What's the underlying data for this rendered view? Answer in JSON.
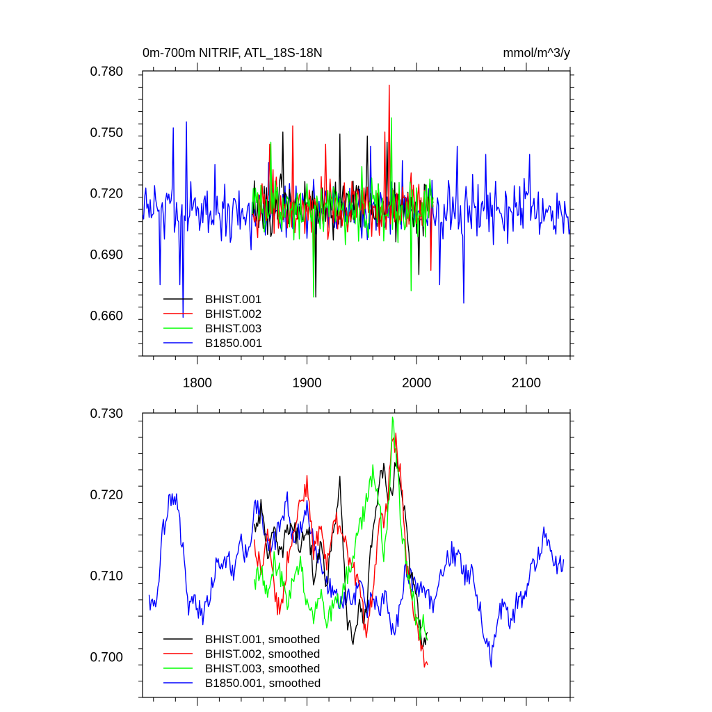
{
  "chart_data": [
    {
      "type": "line",
      "title_left": "0m-700m NITRIF, ATL_18S-18N",
      "title_right": "mmol/m^3/y",
      "xlabel": "",
      "ylabel": "",
      "xlim": [
        1750,
        2140
      ],
      "ylim": [
        0.64,
        0.78
      ],
      "yticks": [
        0.78,
        0.75,
        0.72,
        0.69,
        0.66
      ],
      "ytick_labels": [
        "0.780",
        "0.750",
        "0.720",
        "0.690",
        "0.660"
      ],
      "xticks": [
        1800,
        1900,
        2000,
        2100
      ],
      "xtick_labels": [
        "1800",
        "1900",
        "2000",
        "2100"
      ],
      "legend_position": "bottom-left",
      "series": [
        {
          "name": "BHIST.001",
          "color": "#000000",
          "x_start": 1850,
          "x_end": 2015,
          "mean": 0.713,
          "amp": 0.012,
          "anchors": [
            [
              1878,
              0.75
            ],
            [
              1908,
              0.669
            ],
            [
              1930,
              0.749
            ],
            [
              1955,
              0.748
            ],
            [
              1973,
              0.745
            ],
            [
              2002,
              0.68
            ]
          ]
        },
        {
          "name": "BHIST.002",
          "color": "#ff0000",
          "x_start": 1850,
          "x_end": 2015,
          "mean": 0.713,
          "amp": 0.012,
          "anchors": [
            [
              1866,
              0.744
            ],
            [
              1887,
              0.753
            ],
            [
              1917,
              0.744
            ],
            [
              1975,
              0.773
            ],
            [
              1971,
              0.75
            ],
            [
              1906,
              0.686
            ],
            [
              2013,
              0.682
            ]
          ]
        },
        {
          "name": "BHIST.003",
          "color": "#00ff00",
          "x_start": 1850,
          "x_end": 2015,
          "mean": 0.712,
          "amp": 0.012,
          "anchors": [
            [
              1867,
              0.745
            ],
            [
              1906,
              0.669
            ],
            [
              1977,
              0.757
            ],
            [
              1950,
              0.733
            ],
            [
              1995,
              0.672
            ]
          ]
        },
        {
          "name": "B1850.001",
          "color": "#0000ff",
          "x_start": 1750,
          "x_end": 2140,
          "mean": 0.711,
          "amp": 0.012,
          "anchors": [
            [
              1766,
              0.675
            ],
            [
              1778,
              0.752
            ],
            [
              1790,
              0.755
            ],
            [
              1784,
              0.675
            ],
            [
              1787,
              0.659
            ],
            [
              1816,
              0.734
            ],
            [
              1865,
              0.735
            ],
            [
              1958,
              0.743
            ],
            [
              1987,
              0.736
            ],
            [
              2021,
              0.675
            ],
            [
              2037,
              0.743
            ],
            [
              2043,
              0.666
            ],
            [
              2063,
              0.739
            ],
            [
              2103,
              0.739
            ]
          ]
        }
      ]
    },
    {
      "type": "line",
      "xlabel": "",
      "ylabel": "",
      "xlim": [
        1750,
        2140
      ],
      "ylim": [
        0.695,
        0.73
      ],
      "yticks": [
        0.73,
        0.72,
        0.71,
        0.7
      ],
      "ytick_labels": [
        "0.730",
        "0.720",
        "0.710",
        "0.700"
      ],
      "xticks": [
        1800,
        1900,
        2000,
        2100
      ],
      "legend_position": "bottom-left",
      "series": [
        {
          "name": "BHIST.001, smoothed",
          "color": "#000000",
          "x": [
            1852,
            1858,
            1864,
            1870,
            1876,
            1882,
            1888,
            1894,
            1900,
            1906,
            1912,
            1918,
            1924,
            1930,
            1936,
            1942,
            1948,
            1954,
            1960,
            1966,
            1970,
            1974,
            1978,
            1982,
            1986,
            1990,
            1994,
            1998,
            2002,
            2006,
            2010
          ],
          "y": [
            0.716,
            0.718,
            0.713,
            0.715,
            0.712,
            0.716,
            0.716,
            0.713,
            0.717,
            0.71,
            0.714,
            0.709,
            0.716,
            0.721,
            0.705,
            0.702,
            0.706,
            0.705,
            0.716,
            0.722,
            0.723,
            0.718,
            0.721,
            0.725,
            0.72,
            0.717,
            0.71,
            0.708,
            0.705,
            0.701,
            0.703
          ]
        },
        {
          "name": "BHIST.002, smoothed",
          "color": "#ff0000",
          "x": [
            1852,
            1858,
            1864,
            1870,
            1876,
            1882,
            1888,
            1894,
            1900,
            1906,
            1912,
            1918,
            1924,
            1930,
            1936,
            1942,
            1948,
            1954,
            1960,
            1966,
            1970,
            1974,
            1978,
            1982,
            1986,
            1990,
            1994,
            1998,
            2002,
            2006,
            2010
          ],
          "y": [
            0.714,
            0.711,
            0.716,
            0.708,
            0.705,
            0.712,
            0.716,
            0.719,
            0.721,
            0.713,
            0.716,
            0.711,
            0.717,
            0.716,
            0.713,
            0.711,
            0.708,
            0.703,
            0.708,
            0.716,
            0.717,
            0.72,
            0.727,
            0.726,
            0.722,
            0.712,
            0.708,
            0.705,
            0.702,
            0.7,
            0.699
          ]
        },
        {
          "name": "BHIST.003, smoothed",
          "color": "#00ff00",
          "x": [
            1852,
            1858,
            1864,
            1870,
            1876,
            1882,
            1888,
            1894,
            1900,
            1906,
            1912,
            1918,
            1924,
            1930,
            1936,
            1942,
            1948,
            1954,
            1960,
            1966,
            1970,
            1974,
            1978,
            1982,
            1986,
            1990,
            1994,
            1998,
            2002,
            2006,
            2010
          ],
          "y": [
            0.709,
            0.711,
            0.707,
            0.712,
            0.71,
            0.707,
            0.71,
            0.712,
            0.706,
            0.705,
            0.708,
            0.704,
            0.706,
            0.707,
            0.71,
            0.712,
            0.716,
            0.719,
            0.723,
            0.719,
            0.712,
            0.718,
            0.729,
            0.724,
            0.716,
            0.712,
            0.709,
            0.706,
            0.703,
            0.704,
            0.702
          ]
        },
        {
          "name": "B1850.001, smoothed",
          "color": "#0000ff",
          "x": [
            1756,
            1762,
            1768,
            1774,
            1780,
            1786,
            1792,
            1798,
            1804,
            1810,
            1816,
            1822,
            1828,
            1834,
            1840,
            1846,
            1852,
            1858,
            1864,
            1870,
            1876,
            1882,
            1888,
            1894,
            1900,
            1906,
            1912,
            1918,
            1924,
            1930,
            1936,
            1942,
            1948,
            1954,
            1960,
            1966,
            1972,
            1978,
            1984,
            1990,
            1996,
            2002,
            2008,
            2014,
            2020,
            2026,
            2032,
            2038,
            2044,
            2050,
            2056,
            2062,
            2068,
            2074,
            2080,
            2086,
            2092,
            2098,
            2104,
            2110,
            2116,
            2122,
            2128,
            2134
          ],
          "y": [
            0.707,
            0.706,
            0.715,
            0.719,
            0.72,
            0.714,
            0.706,
            0.707,
            0.705,
            0.707,
            0.711,
            0.712,
            0.712,
            0.71,
            0.714,
            0.712,
            0.718,
            0.719,
            0.713,
            0.714,
            0.717,
            0.719,
            0.714,
            0.716,
            0.718,
            0.714,
            0.712,
            0.709,
            0.708,
            0.706,
            0.708,
            0.706,
            0.71,
            0.706,
            0.707,
            0.706,
            0.707,
            0.703,
            0.705,
            0.711,
            0.709,
            0.708,
            0.708,
            0.706,
            0.71,
            0.711,
            0.713,
            0.712,
            0.71,
            0.71,
            0.707,
            0.703,
            0.7,
            0.705,
            0.707,
            0.704,
            0.707,
            0.707,
            0.711,
            0.712,
            0.715,
            0.714,
            0.711,
            0.712
          ]
        }
      ]
    }
  ]
}
